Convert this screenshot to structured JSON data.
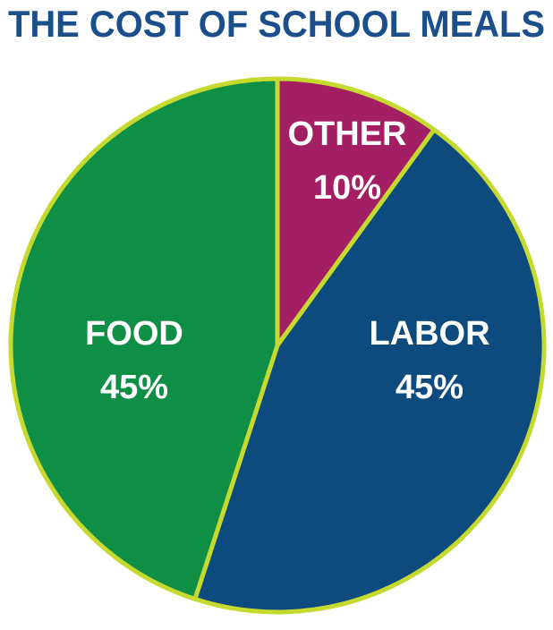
{
  "chart_data": {
    "type": "pie",
    "title": "THE COST OF SCHOOL MEALS",
    "categories": [
      "OTHER",
      "LABOR",
      "FOOD"
    ],
    "values": [
      10,
      45,
      45
    ],
    "value_labels": [
      "10%",
      "45%",
      "45%"
    ],
    "colors": [
      "#a31e62",
      "#0d4a7d",
      "#0f8e45"
    ],
    "edgecolor": "#c5d92f"
  }
}
